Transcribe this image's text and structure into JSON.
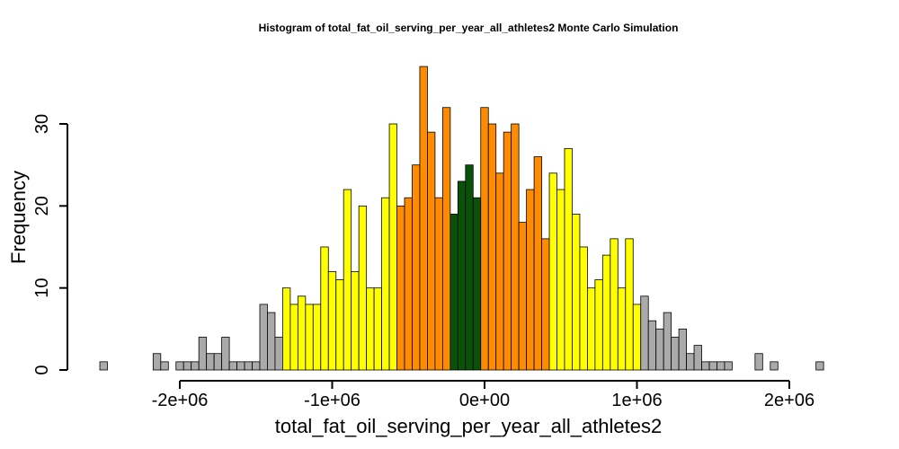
{
  "chart_data": {
    "type": "bar",
    "title": "Histogram of  total_fat_oil_serving_per_year_all_athletes2  Monte Carlo Simulation",
    "xlabel": "total_fat_oil_serving_per_year_all_athletes2",
    "ylabel": "Frequency",
    "xlim": [
      -2500000,
      2300000
    ],
    "ylim": [
      0,
      37
    ],
    "x_ticks": [
      -2000000,
      -1000000,
      0,
      1000000,
      2000000
    ],
    "x_tick_labels": [
      "-2e+06",
      "-1e+06",
      "0e+00",
      "1e+06",
      "2e+06"
    ],
    "y_ticks": [
      0,
      10,
      20,
      30
    ],
    "y_tick_labels": [
      "0",
      "10",
      "20",
      "30"
    ],
    "bin_start": -2525000,
    "bin_width": 50000,
    "counts": [
      1,
      0,
      0,
      0,
      0,
      0,
      0,
      2,
      1,
      0,
      1,
      1,
      1,
      4,
      2,
      2,
      4,
      1,
      1,
      1,
      1,
      8,
      7,
      4,
      10,
      8,
      9,
      8,
      8,
      15,
      12,
      11,
      22,
      12,
      20,
      10,
      10,
      21,
      30,
      20,
      21,
      25,
      37,
      29,
      21,
      32,
      19,
      23,
      25,
      21,
      32,
      30,
      24,
      29,
      30,
      18,
      22,
      26,
      16,
      24,
      22,
      27,
      19,
      15,
      10,
      11,
      14,
      16,
      10,
      16,
      8,
      9,
      6,
      5,
      7,
      4,
      5,
      2,
      3,
      1,
      1,
      1,
      1,
      0,
      0,
      0,
      2,
      0,
      1,
      0,
      0,
      0,
      0,
      0,
      1
    ],
    "colors": {
      "tail": "#aaaaaa",
      "outer": "#ffff00",
      "middle": "#ff8c00",
      "center": "#0a520a"
    },
    "color_bands": [
      {
        "from": -1325000,
        "to": 1025000,
        "color": "outer"
      },
      {
        "from": -575000,
        "to": 425000,
        "color": "middle"
      },
      {
        "from": -225000,
        "to": -25000,
        "color": "center"
      }
    ]
  }
}
